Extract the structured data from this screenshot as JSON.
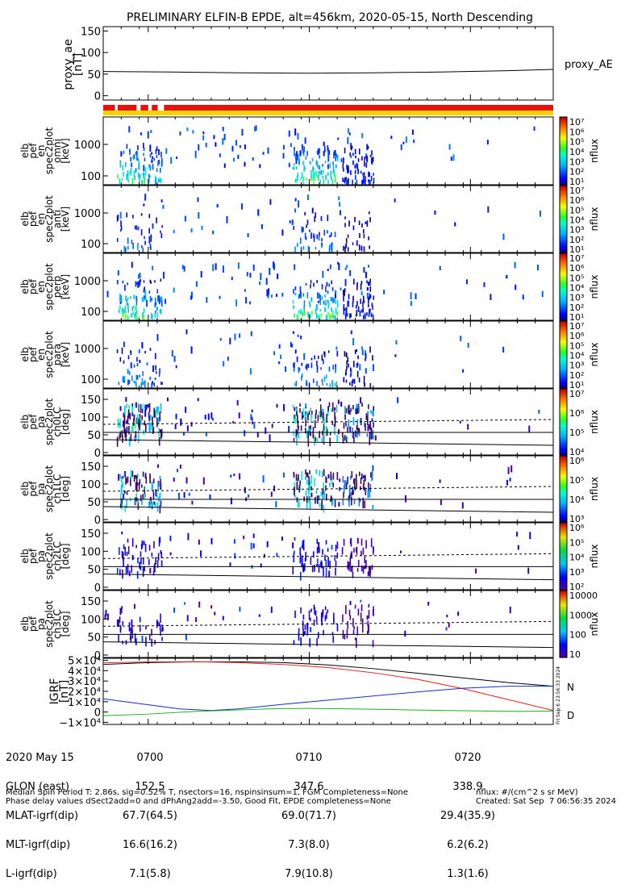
{
  "title": "PRELIMINARY ELFIN-B EPDE, alt=456km, 2020-05-15, North Descending",
  "colors": {
    "black": "#000000",
    "red_line": "#e0201a",
    "blue_line": "#1530c8",
    "green_line": "#18b418",
    "bar_red": "#e8120c",
    "bar_yellow": "#f6d400"
  },
  "chart_data": [
    {
      "id": "proxy_ae",
      "type": "line",
      "ylabel_lines": [
        "proxy_ae",
        "[nT]"
      ],
      "right_label": "proxy_AE",
      "y_ticks": [
        "150",
        "100",
        "50",
        "0"
      ],
      "ylim": [
        -10,
        160
      ],
      "series": [
        {
          "points": [
            [
              0,
              56
            ],
            [
              0.15,
              55
            ],
            [
              0.3,
              53
            ],
            [
              0.45,
              52
            ],
            [
              0.6,
              53
            ],
            [
              0.75,
              55
            ],
            [
              0.9,
              58
            ],
            [
              1,
              61
            ]
          ]
        }
      ]
    },
    {
      "id": "status_bar",
      "type": "bar",
      "red_segments": [
        [
          0,
          0.026
        ],
        [
          0.032,
          0.074
        ],
        [
          0.083,
          0.1
        ],
        [
          0.108,
          0.121
        ],
        [
          0.135,
          1
        ]
      ],
      "yellow_segments": [
        [
          0,
          1
        ]
      ]
    },
    {
      "id": "en_omni",
      "type": "heatmap",
      "ylabel_lines": [
        "elb",
        "pef",
        "en",
        "spec2plot",
        "omni",
        "[keV]"
      ],
      "y_ticks": [
        "1000",
        "100"
      ],
      "colorbar": {
        "label": "nflux",
        "ticks": [
          "10⁷",
          "10⁶",
          "10⁵",
          "10⁴",
          "10³",
          "10²",
          "10¹"
        ]
      }
    },
    {
      "id": "en_anti",
      "type": "heatmap",
      "ylabel_lines": [
        "elb",
        "pef",
        "en",
        "spec2plot",
        "anti",
        "[keV]"
      ],
      "y_ticks": [
        "1000",
        "100"
      ],
      "colorbar": {
        "label": "nflux",
        "ticks": [
          "10⁷",
          "10⁶",
          "10⁵",
          "10⁴",
          "10³",
          "10²",
          "10¹"
        ]
      }
    },
    {
      "id": "en_perp",
      "type": "heatmap",
      "ylabel_lines": [
        "elb",
        "pef",
        "en",
        "spec2plot",
        "perp",
        "[keV]"
      ],
      "y_ticks": [
        "1000",
        "100"
      ],
      "colorbar": {
        "label": "nflux",
        "ticks": [
          "10⁷",
          "10⁶",
          "10⁵",
          "10⁴",
          "10³",
          "10²",
          "10¹"
        ]
      }
    },
    {
      "id": "en_para",
      "type": "heatmap",
      "ylabel_lines": [
        "elb",
        "pef",
        "en",
        "spec2plot",
        "para",
        "[keV]"
      ],
      "y_ticks": [
        "1000",
        "100"
      ],
      "colorbar": {
        "label": "nflux",
        "ticks": [
          "10⁷",
          "10⁶",
          "10⁵",
          "10⁴",
          "10³",
          "10²",
          "10¹"
        ]
      }
    },
    {
      "id": "pa_ch0",
      "type": "heatmap",
      "ylabel_lines": [
        "elb",
        "pef",
        "pa",
        "spec2plot",
        "ch0LC",
        "[deg]"
      ],
      "y_ticks": [
        "150",
        "100",
        "50",
        "0"
      ],
      "colorbar": {
        "label": "nflux",
        "ticks": [
          "10⁷",
          "10⁶",
          "10⁵",
          "10⁴"
        ]
      }
    },
    {
      "id": "pa_ch1",
      "type": "heatmap",
      "ylabel_lines": [
        "elb",
        "pef",
        "pa",
        "spec2plot",
        "ch1LC",
        "[deg]"
      ],
      "y_ticks": [
        "150",
        "100",
        "50",
        "0"
      ],
      "colorbar": {
        "label": "nflux",
        "ticks": [
          "10⁶",
          "10⁵",
          "10⁴",
          "10³"
        ]
      }
    },
    {
      "id": "pa_ch2",
      "type": "heatmap",
      "ylabel_lines": [
        "elb",
        "pef",
        "pa",
        "spec2plot",
        "ch2LC",
        "[deg]"
      ],
      "y_ticks": [
        "150",
        "100",
        "50",
        "0"
      ],
      "colorbar": {
        "label": "nflux",
        "ticks": [
          "10⁶",
          "10⁵",
          "10⁴",
          "10³",
          "10²"
        ]
      }
    },
    {
      "id": "pa_ch3",
      "type": "heatmap",
      "ylabel_lines": [
        "elb",
        "pef",
        "pa",
        "spec2plot",
        "ch3LC",
        "[deg]"
      ],
      "y_ticks": [
        "150",
        "100",
        "50",
        "0"
      ],
      "colorbar": {
        "label": "nflux",
        "ticks": [
          "10000",
          "1000",
          "100",
          "10"
        ]
      }
    },
    {
      "id": "igrf",
      "type": "line",
      "ylabel_lines": [
        "IGRF",
        "[nT]"
      ],
      "y_ticks": [
        "5×10⁴",
        "4×10⁴",
        "3×10⁴",
        "2×10⁴",
        "1×10⁴",
        "0",
        "−1×10⁴"
      ],
      "ylim": [
        -12000,
        52000
      ],
      "right_labels": [
        "N",
        "D"
      ],
      "side_text": "Fri Sep  6 23:56:33 2024",
      "series": [
        {
          "name": "N",
          "color": "#000000",
          "points": [
            [
              0,
              46000
            ],
            [
              0.1,
              47800
            ],
            [
              0.2,
              48600
            ],
            [
              0.3,
              48600
            ],
            [
              0.4,
              47800
            ],
            [
              0.5,
              45600
            ],
            [
              0.6,
              42000
            ],
            [
              0.7,
              37500
            ],
            [
              0.8,
              33000
            ],
            [
              0.9,
              28500
            ],
            [
              1,
              25000
            ]
          ]
        },
        {
          "name": "D",
          "color": "#e0201a",
          "points": [
            [
              0,
              47500
            ],
            [
              0.1,
              48500
            ],
            [
              0.2,
              48700
            ],
            [
              0.3,
              47800
            ],
            [
              0.4,
              46000
            ],
            [
              0.5,
              43000
            ],
            [
              0.6,
              38000
            ],
            [
              0.7,
              31500
            ],
            [
              0.8,
              22500
            ],
            [
              0.9,
              12000
            ],
            [
              1,
              1500
            ]
          ]
        },
        {
          "name": "",
          "color": "#1530c8",
          "points": [
            [
              0,
              12800
            ],
            [
              0.1,
              7000
            ],
            [
              0.17,
              3000
            ],
            [
              0.24,
              1500
            ],
            [
              0.3,
              3000
            ],
            [
              0.4,
              7500
            ],
            [
              0.5,
              11500
            ],
            [
              0.6,
              15500
            ],
            [
              0.7,
              19500
            ],
            [
              0.8,
              23000
            ],
            [
              0.9,
              25000
            ],
            [
              1,
              25000
            ]
          ]
        },
        {
          "name": "",
          "color": "#18b418",
          "points": [
            [
              0,
              -3500
            ],
            [
              0.1,
              -2000
            ],
            [
              0.2,
              500
            ],
            [
              0.3,
              2000
            ],
            [
              0.38,
              3200
            ],
            [
              0.45,
              3500
            ],
            [
              0.55,
              3000
            ],
            [
              0.65,
              2300
            ],
            [
              0.75,
              1600
            ],
            [
              0.85,
              1000
            ],
            [
              0.93,
              700
            ],
            [
              1,
              1000
            ]
          ]
        }
      ]
    }
  ],
  "x_axis": {
    "ticks": [
      {
        "pos": 0.1,
        "time": "0700",
        "glon": "152.5",
        "mlat": "67.7(64.5)",
        "mlt": "16.6(16.2)",
        "l": "7.1(5.8)"
      },
      {
        "pos": 0.458,
        "time": "0710",
        "glon": "347.6",
        "mlat": "69.0(71.7)",
        "mlt": "7.3(8.0)",
        "l": "7.9(10.8)"
      },
      {
        "pos": 0.816,
        "time": "0720",
        "glon": "338.9",
        "mlat": "29.4(35.9)",
        "mlt": "6.2(6.2)",
        "l": "1.3(1.6)"
      }
    ],
    "row_labels": [
      "2020 May 15",
      "GLON (east)",
      "MLAT-igrf(dip)",
      "MLT-igrf(dip)",
      "L-igrf(dip)"
    ]
  },
  "footer": {
    "line1": "Median Spin Period T: 2.86s, sig=0.52% T, nsectors=16, nspinsinsum=1, FGM Completeness=None",
    "line2": "Phase delay values dSect2add=0 and dPhAng2add=-3.50, Good Fit, EPDE completeness=None",
    "units": "nflux: #/(cm^2 s sr MeV)",
    "created": "Created: Sat Sep  7 06:56:35 2024"
  }
}
